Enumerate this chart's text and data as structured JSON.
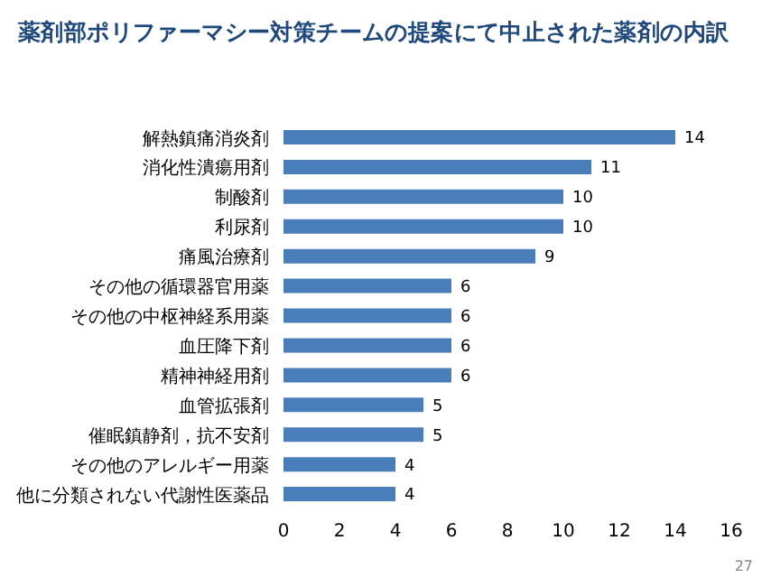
{
  "chart_data": {
    "type": "bar",
    "orientation": "horizontal",
    "title": "薬剤部ポリファーマシー対策チームの提案にて中止された薬剤の内訳",
    "categories": [
      "解熱鎮痛消炎剤",
      "消化性潰瘍用剤",
      "制酸剤",
      "利尿剤",
      "痛風治療剤",
      "その他の循環器官用薬",
      "その他の中枢神経系用薬",
      "血圧降下剤",
      "精神神経用剤",
      "血管拡張剤",
      "催眠鎮静剤，抗不安剤",
      "その他のアレルギー用薬",
      "他に分類されない代謝性医薬品"
    ],
    "values": [
      14,
      11,
      10,
      10,
      9,
      6,
      6,
      6,
      6,
      5,
      5,
      4,
      4
    ],
    "color": "#4a7ebb",
    "data_labels": true,
    "xlim": [
      0,
      16
    ],
    "xticks": [
      0,
      2,
      4,
      6,
      8,
      10,
      12,
      14,
      16
    ],
    "grid": false,
    "annotations": [
      "27"
    ]
  }
}
